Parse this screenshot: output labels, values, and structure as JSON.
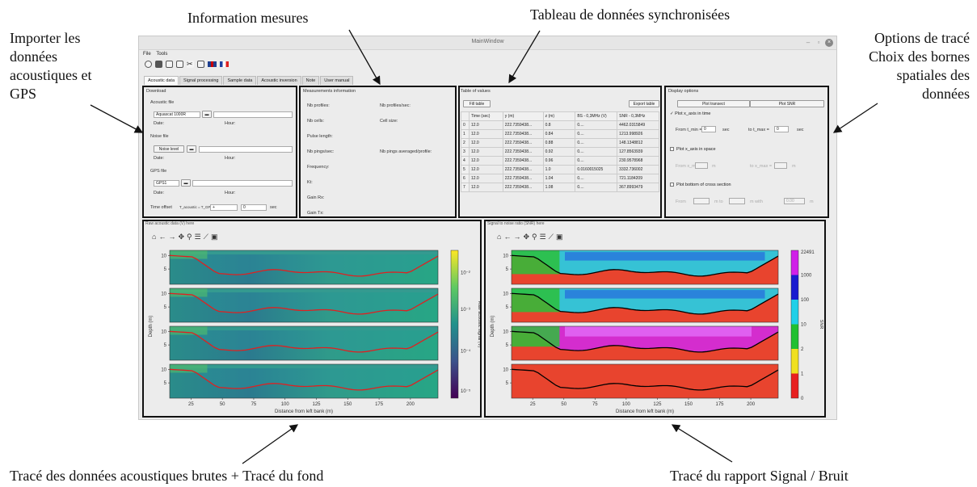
{
  "annotations": {
    "importer": [
      "Importer les",
      "données",
      "acoustiques et",
      "GPS"
    ],
    "information": "Information mesures",
    "tableau": "Tableau de données synchronisées",
    "options": [
      "Options de tracé",
      "Choix des bornes",
      "spatiales des",
      "données"
    ],
    "trace_bruts": "Tracé des données acoustiques brutes + Tracé du fond",
    "trace_snr": "Tracé du rapport Signal / Bruit"
  },
  "window": {
    "title": "MainWindow"
  },
  "menu": [
    "File",
    "Tools"
  ],
  "tabs": [
    "Acoustic data",
    "Signal processing",
    "Sample data",
    "Acoustic inversion",
    "Note",
    "User manual"
  ],
  "download": {
    "title": "Download",
    "acoustic_file": "Acoustic file",
    "acoustic_select": "Aquascat 1000R",
    "date": "Date:",
    "hour": "Hour:",
    "noise_file": "Noise file",
    "noise_select": "Noise level",
    "gps_file": "GPS file",
    "gps_select": "GPS1",
    "time_offset": "Time offset",
    "time_offset_eq": "T_acoustic = T_GPS",
    "time_offset_value": "0",
    "sec": "sec"
  },
  "measurements": {
    "title": "Measurements information",
    "left": [
      "Nb profiles:",
      "Nb cells:",
      "Pulse length:",
      "Nb pings/sec:",
      "Frequency:",
      "Kt:",
      "Gain Rx:",
      "Gain Tx:"
    ],
    "right": [
      "Nb profiles/sec:",
      "Cell size:",
      "",
      "Nb pings averaged/profile:"
    ]
  },
  "values_table": {
    "title": "Table of values",
    "fill_button": "Fill table",
    "export_button": "Export table",
    "headers": [
      "",
      "Time (sec)",
      "y (m)",
      "z (m)",
      "BS - 0,3MHz (V)",
      "SNR - 0,3MHz"
    ],
    "rows": [
      [
        "0",
        "12.0",
        "222.7359438...",
        "0.8",
        "0....",
        "4462.0315849"
      ],
      [
        "1",
        "12.0",
        "222.7359438...",
        "0.84",
        "0....",
        "1213.998926"
      ],
      [
        "2",
        "12.0",
        "222.7359438...",
        "0.88",
        "0....",
        "148.1348812"
      ],
      [
        "3",
        "12.0",
        "222.7359438...",
        "0.92",
        "0....",
        "127.8563939"
      ],
      [
        "4",
        "12.0",
        "222.7359438...",
        "0.96",
        "0....",
        "230.9578968"
      ],
      [
        "5",
        "12.0",
        "222.7359438...",
        "1.0",
        "0.0160015025",
        "3332.736002"
      ],
      [
        "6",
        "12.0",
        "222.7359438...",
        "1.04",
        "0....",
        "721.1184209"
      ],
      [
        "7",
        "12.0",
        "222.7359438...",
        "1.08",
        "0....",
        "367.8993479"
      ]
    ]
  },
  "display": {
    "title": "Display options",
    "plot_transect": "Plot transect",
    "plot_snr": "Plot SNR",
    "x_time": "Plot x_axis in time",
    "from": "From t_min =",
    "to": "to t_max =",
    "zero": "0",
    "sec": "sec",
    "x_space": "Plot x_axis in space",
    "from_space": "From x_min =",
    "to_space": "to x_max =",
    "m": "m",
    "bottom": "Plot bottom of cross section",
    "from_bottom": "From",
    "m_to": "m to",
    "m_with": "m with",
    "width_zero": "0.00"
  },
  "raw_plot": {
    "title": "Raw acoustic data (V) here",
    "xlabel": "Distance from left bank (m)",
    "ylabel": "Depth (m)",
    "cbar_label": "Raw acoustic signal (V)",
    "xticks": [
      "25",
      "50",
      "75",
      "100",
      "125",
      "150",
      "175",
      "200"
    ],
    "yticks": [
      "10",
      "5"
    ],
    "cbar_ticks": [
      "10⁻²",
      "10⁻³",
      "10⁻⁴",
      "10⁻⁵"
    ]
  },
  "snr_plot": {
    "title": "Signal to noise ratio (SNR) here",
    "xlabel": "Distance from left bank (m)",
    "ylabel": "Depth (m)",
    "cbar_label": "SNR",
    "xticks": [
      "25",
      "50",
      "75",
      "100",
      "125",
      "150",
      "175",
      "200"
    ],
    "yticks": [
      "10",
      "5"
    ],
    "cbar_ticks": [
      "22491",
      "1000",
      "100",
      "10",
      "2",
      "1",
      "0"
    ]
  },
  "nav_icons": [
    "home-icon",
    "back-icon",
    "forward-icon",
    "pan-icon",
    "zoom-icon",
    "subplots-icon",
    "axes-icon",
    "save-icon"
  ],
  "colors": {
    "raw_bottom_line": "#e02020",
    "snr_bottom_line": "#000000"
  }
}
